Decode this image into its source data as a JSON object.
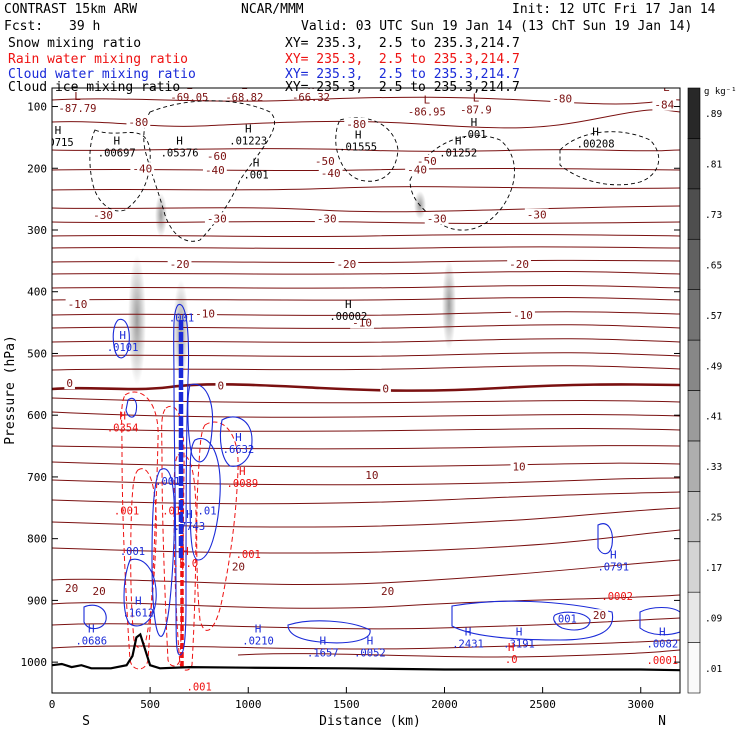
{
  "header": {
    "model": "CONTRAST 15km ARW",
    "center": "NCAR/MMM",
    "init": "Init: 12 UTC Fri 17 Jan 14",
    "fcst_label": "Fcst:",
    "fcst_value": "39 h",
    "valid": "Valid: 03 UTC Sun 19 Jan 14 (13 ChT Sun 19 Jan 14)"
  },
  "fields": [
    {
      "name": "Snow mixing ratio",
      "xy": "XY= 235.3,  2.5 to 235.3,214.7",
      "color": "#000000"
    },
    {
      "name": "Rain water mixing ratio",
      "xy": "XY= 235.3,  2.5 to 235.3,214.7",
      "color": "#ee1111"
    },
    {
      "name": "Cloud water mixing ratio",
      "xy": "XY= 235.3,  2.5 to 235.3,214.7",
      "color": "#1a2ad8"
    },
    {
      "name": "Cloud ice mixing ratio",
      "xy": "XY= 235.3,  2.5 to 235.3,214.7",
      "color": "#000000"
    }
  ],
  "chart_data": {
    "type": "contour",
    "xlabel": "Distance (km)",
    "ylabel": "Pressure (hPa)",
    "xlim": [
      0,
      3200
    ],
    "ylim": [
      1050,
      70
    ],
    "x_ticks": [
      0,
      500,
      1000,
      1500,
      2000,
      2500,
      3000
    ],
    "y_ticks": [
      100,
      200,
      300,
      400,
      500,
      600,
      700,
      800,
      900,
      1000
    ],
    "x_end_labels": {
      "left": "S",
      "right": "N"
    },
    "colorbar": {
      "unit": "g kg⁻¹",
      "ticks": [
        ".01",
        ".09",
        ".17",
        ".25",
        ".33",
        ".41",
        ".49",
        ".57",
        ".65",
        ".73",
        ".81",
        ".89"
      ],
      "levels": [
        0.01,
        0.09,
        0.17,
        0.25,
        0.33,
        0.41,
        0.49,
        0.57,
        0.65,
        0.73,
        0.81,
        0.89
      ]
    },
    "temperature_isotherms": [
      {
        "label": "-80",
        "p": 128
      },
      {
        "label": "-60",
        "p": 180
      },
      {
        "label": "-50",
        "p": 185
      },
      {
        "label": "-40",
        "p": 205
      },
      {
        "label": "-30",
        "p": 277
      },
      {
        "label": "-20",
        "p": 355
      },
      {
        "label": "-10",
        "p": 440
      },
      {
        "label": "0",
        "p": 552
      },
      {
        "label": "10",
        "p": 700
      },
      {
        "label": "20",
        "p": 890
      }
    ],
    "temp_labels": [
      {
        "text": "-80",
        "x": 440,
        "p": 125
      },
      {
        "text": "-80",
        "x": 1550,
        "p": 128
      },
      {
        "text": "-80",
        "x": 2600,
        "p": 87
      },
      {
        "text": "-84",
        "x": 3120,
        "p": 97
      },
      {
        "text": "-60",
        "x": 840,
        "p": 180
      },
      {
        "text": "-50",
        "x": 1390,
        "p": 188
      },
      {
        "text": "-50",
        "x": 1910,
        "p": 188
      },
      {
        "text": "-40",
        "x": 460,
        "p": 200
      },
      {
        "text": "-40",
        "x": 830,
        "p": 203
      },
      {
        "text": "-40",
        "x": 1420,
        "p": 208
      },
      {
        "text": "-40",
        "x": 1860,
        "p": 202
      },
      {
        "text": "-30",
        "x": 260,
        "p": 276
      },
      {
        "text": "-30",
        "x": 840,
        "p": 281
      },
      {
        "text": "-30",
        "x": 1400,
        "p": 281
      },
      {
        "text": "-30",
        "x": 1960,
        "p": 281
      },
      {
        "text": "-30",
        "x": 2470,
        "p": 275
      },
      {
        "text": "-20",
        "x": 650,
        "p": 355
      },
      {
        "text": "-20",
        "x": 1500,
        "p": 355
      },
      {
        "text": "-20",
        "x": 2380,
        "p": 355
      },
      {
        "text": "-10",
        "x": 130,
        "p": 420
      },
      {
        "text": "-10",
        "x": 780,
        "p": 435
      },
      {
        "text": "-10",
        "x": 1580,
        "p": 450
      },
      {
        "text": "-10",
        "x": 2400,
        "p": 438
      },
      {
        "text": "0",
        "x": 90,
        "p": 548
      },
      {
        "text": "0",
        "x": 860,
        "p": 552
      },
      {
        "text": "0",
        "x": 1700,
        "p": 557
      },
      {
        "text": "10",
        "x": 1630,
        "p": 697
      },
      {
        "text": "10",
        "x": 2380,
        "p": 683
      },
      {
        "text": "20",
        "x": 100,
        "p": 880
      },
      {
        "text": "20",
        "x": 240,
        "p": 885
      },
      {
        "text": "20",
        "x": 950,
        "p": 845
      },
      {
        "text": "20",
        "x": 1710,
        "p": 885
      },
      {
        "text": "20",
        "x": 2790,
        "p": 924
      }
    ],
    "extrema_labels": [
      {
        "mark": "L",
        "value": "-87.79",
        "x": 130,
        "p": 93,
        "color": "#7a1010"
      },
      {
        "mark": "L",
        "value": "-69.05",
        "x": 700,
        "p": 75,
        "color": "#7a1010"
      },
      {
        "mark": "L",
        "value": "-68.82",
        "x": 980,
        "p": 75,
        "color": "#7a1010"
      },
      {
        "mark": "H",
        "value": "-66.32",
        "x": 1320,
        "p": 75,
        "color": "#7a1010"
      },
      {
        "mark": "L",
        "value": "-86.95",
        "x": 1910,
        "p": 98,
        "color": "#7a1010"
      },
      {
        "mark": "L",
        "value": "-87.9",
        "x": 2160,
        "p": 95,
        "color": "#7a1010"
      },
      {
        "mark": "L",
        "value": "",
        "x": 3130,
        "p": 78,
        "color": "#7a1010"
      },
      {
        "mark": "H",
        "value": ".0715",
        "x": 30,
        "p": 148,
        "color": "#000000"
      },
      {
        "mark": "H",
        "value": ".00697",
        "x": 330,
        "p": 165,
        "color": "#000000"
      },
      {
        "mark": "H",
        "value": ".05376",
        "x": 650,
        "p": 165,
        "color": "#000000"
      },
      {
        "mark": "H",
        "value": ".01223",
        "x": 1000,
        "p": 145,
        "color": "#000000"
      },
      {
        "mark": "H",
        "value": ".001",
        "x": 1040,
        "p": 200,
        "color": "#000000"
      },
      {
        "mark": "H",
        "value": ".01555",
        "x": 1560,
        "p": 155,
        "color": "#000000"
      },
      {
        "mark": "H",
        "value": ".001",
        "x": 2150,
        "p": 135,
        "color": "#000000"
      },
      {
        "mark": "H",
        "value": ".01252",
        "x": 2070,
        "p": 165,
        "color": "#000000"
      },
      {
        "mark": "H",
        "value": ".00208",
        "x": 2770,
        "p": 150,
        "color": "#000000"
      },
      {
        "mark": "H",
        "value": ".00002",
        "x": 1510,
        "p": 430,
        "color": "#000000"
      },
      {
        "mark": "H",
        "value": ".0101",
        "x": 360,
        "p": 480,
        "color": "#1a2ad8"
      },
      {
        "mark": "",
        "value": ".001",
        "x": 660,
        "p": 432,
        "color": "#1a2ad8"
      },
      {
        "mark": "H",
        "value": ".6632",
        "x": 950,
        "p": 645,
        "color": "#1a2ad8"
      },
      {
        "mark": "H",
        "value": ".7743",
        "x": 700,
        "p": 770,
        "color": "#1a2ad8"
      },
      {
        "mark": "H",
        "value": ".1612",
        "x": 440,
        "p": 910,
        "color": "#1a2ad8"
      },
      {
        "mark": "H",
        "value": ".0686",
        "x": 200,
        "p": 955,
        "color": "#1a2ad8"
      },
      {
        "mark": "H",
        "value": ".0210",
        "x": 1050,
        "p": 955,
        "color": "#1a2ad8"
      },
      {
        "mark": "H",
        "value": ".1657",
        "x": 1380,
        "p": 975,
        "color": "#1a2ad8"
      },
      {
        "mark": "H",
        "value": ".0052",
        "x": 1620,
        "p": 975,
        "color": "#1a2ad8"
      },
      {
        "mark": "H",
        "value": ".2431",
        "x": 2120,
        "p": 960,
        "color": "#1a2ad8"
      },
      {
        "mark": "H",
        "value": ".3191",
        "x": 2380,
        "p": 960,
        "color": "#1a2ad8"
      },
      {
        "mark": "H",
        "value": ".0791",
        "x": 2860,
        "p": 835,
        "color": "#1a2ad8"
      },
      {
        "mark": "H",
        "value": ".0082",
        "x": 3110,
        "p": 960,
        "color": "#1a2ad8"
      },
      {
        "mark": "",
        "value": ".001",
        "x": 2610,
        "p": 920,
        "color": "#1a2ad8"
      },
      {
        "mark": "",
        "value": ".001",
        "x": 590,
        "p": 697,
        "color": "#1a2ad8"
      },
      {
        "mark": "",
        "value": ".001",
        "x": 410,
        "p": 810,
        "color": "#1a2ad8"
      },
      {
        "mark": "",
        "value": ".01",
        "x": 790,
        "p": 745,
        "color": "#1a2ad8"
      },
      {
        "mark": "H",
        "value": ".0354",
        "x": 360,
        "p": 610,
        "color": "#ee1111"
      },
      {
        "mark": "H",
        "value": ".0089",
        "x": 970,
        "p": 700,
        "color": "#ee1111"
      },
      {
        "mark": "",
        "value": ".001",
        "x": 380,
        "p": 745,
        "color": "#ee1111"
      },
      {
        "mark": "",
        "value": ".01",
        "x": 610,
        "p": 745,
        "color": "#ee1111"
      },
      {
        "mark": "",
        "value": ".001",
        "x": 1000,
        "p": 815,
        "color": "#ee1111"
      },
      {
        "mark": "H",
        "value": ".5.0",
        "x": 680,
        "p": 830,
        "color": "#ee1111"
      },
      {
        "mark": "H",
        "value": ".0",
        "x": 2340,
        "p": 985,
        "color": "#ee1111"
      },
      {
        "mark": "",
        "value": ".0002",
        "x": 2880,
        "p": 883,
        "color": "#ee1111"
      },
      {
        "mark": "",
        "value": ".0001",
        "x": 3110,
        "p": 987,
        "color": "#ee1111"
      },
      {
        "mark": "",
        "value": ".001",
        "x": 750,
        "p": 1030,
        "color": "#ee1111"
      }
    ],
    "terrain": [
      [
        0,
        1005
      ],
      [
        50,
        1003
      ],
      [
        100,
        1008
      ],
      [
        150,
        1005
      ],
      [
        200,
        1010
      ],
      [
        300,
        1010
      ],
      [
        380,
        1005
      ],
      [
        410,
        990
      ],
      [
        430,
        960
      ],
      [
        450,
        955
      ],
      [
        470,
        975
      ],
      [
        500,
        1005
      ],
      [
        550,
        1010
      ],
      [
        700,
        1008
      ],
      [
        1000,
        1009
      ],
      [
        1500,
        1010
      ],
      [
        2000,
        1012
      ],
      [
        2500,
        1012
      ],
      [
        3000,
        1012
      ],
      [
        3200,
        1013
      ]
    ]
  }
}
